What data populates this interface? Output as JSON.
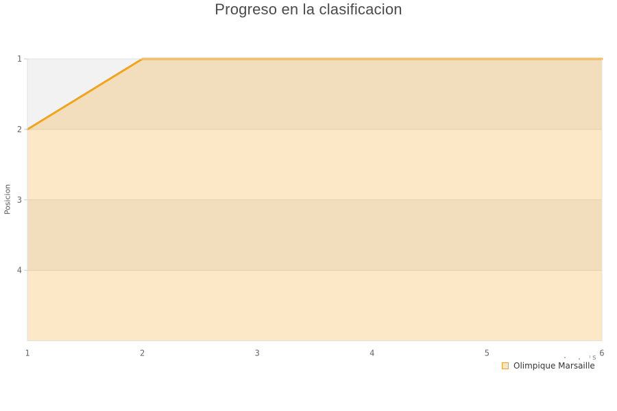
{
  "title": "Progreso en la clasificacion",
  "y_axis_title": "Posicion",
  "legend": {
    "items": [
      {
        "label": "Olimpique Marsaille",
        "swatch_fill": "#f8e5c5",
        "swatch_border": "#f2a41b"
      }
    ]
  },
  "watermark": {
    "text": "s"
  },
  "colors": {
    "line": "#f3a318",
    "fill": "rgba(245,163,26,0.25)",
    "band_gray": "#f2f2f2",
    "band_white": "#ffffff",
    "grid": "#dddddd",
    "border": "#e0e0e0",
    "tick": "#cccccc",
    "axis_label": "#666666",
    "title_color": "#4a4a4a"
  },
  "chart_data": {
    "type": "area",
    "title": "Progreso en la clasificacion",
    "xlabel": "",
    "ylabel": "Posicion",
    "x": [
      1,
      2,
      3,
      4,
      5,
      6
    ],
    "x_ticks": [
      "1",
      "2",
      "3",
      "4",
      "5",
      "6"
    ],
    "y_ticks": [
      "1",
      "2",
      "3",
      "4"
    ],
    "ylim": [
      1,
      5
    ],
    "y_inverted_positions": true,
    "grid": true,
    "legend_position": "bottom-right",
    "series": [
      {
        "name": "Olimpique Marsaille",
        "values": [
          2,
          1,
          1,
          1,
          1,
          1
        ]
      }
    ]
  }
}
